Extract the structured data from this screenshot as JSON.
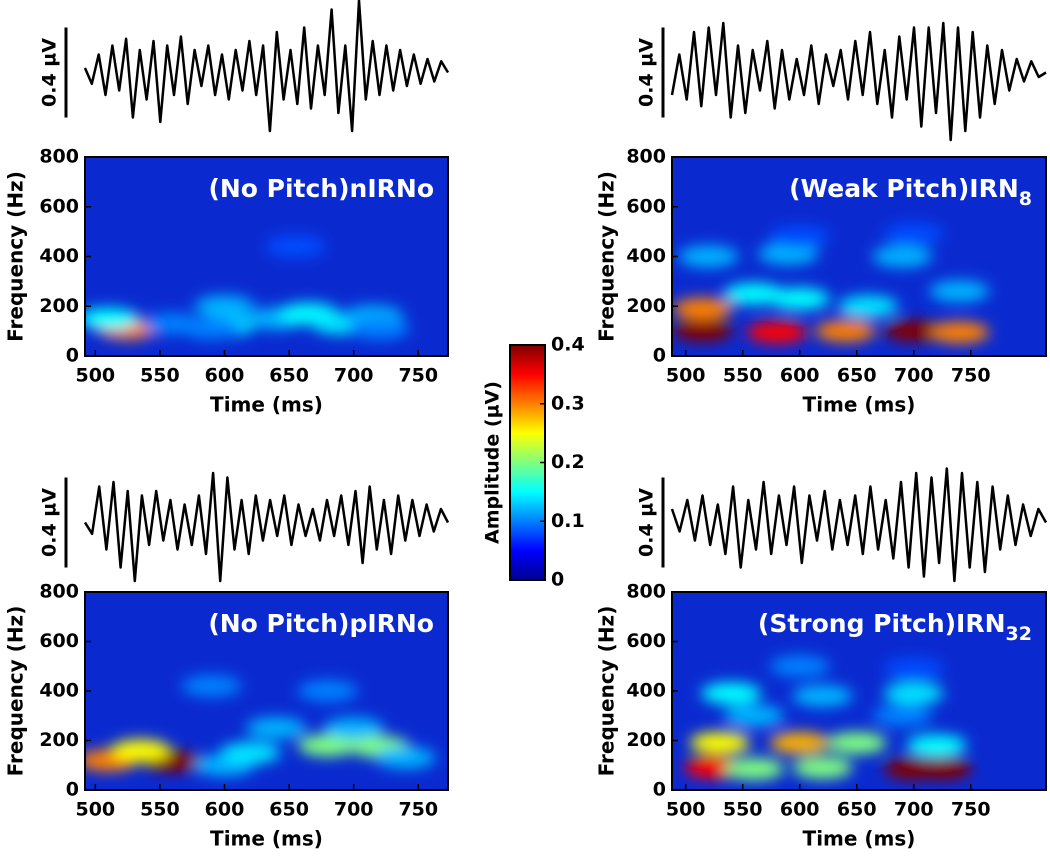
{
  "chart_data": [
    {
      "type": "spectrogram",
      "title": "(No Pitch)nIRNo",
      "xlabel": "Time (ms)",
      "ylabel": "Frequency (Hz)",
      "xlim": [
        492,
        773
      ],
      "xticks": [
        500,
        550,
        600,
        650,
        700,
        750
      ],
      "ylim": [
        0,
        800
      ],
      "yticks": [
        0,
        200,
        400,
        600,
        800
      ],
      "waveform": {
        "scale_label": "0.4 µV",
        "scale": 0.4,
        "values": [
          0.02,
          -0.05,
          0.08,
          -0.1,
          0.12,
          -0.08,
          0.15,
          -0.2,
          0.1,
          -0.12,
          0.14,
          -0.22,
          0.12,
          -0.1,
          0.16,
          -0.14,
          0.1,
          -0.06,
          0.12,
          -0.1,
          0.08,
          -0.12,
          0.1,
          -0.08,
          0.14,
          -0.1,
          0.12,
          -0.26,
          0.18,
          -0.12,
          0.1,
          -0.14,
          0.2,
          -0.16,
          0.12,
          -0.1,
          0.28,
          -0.18,
          0.12,
          -0.26,
          0.32,
          -0.12,
          0.14,
          -0.1,
          0.12,
          -0.08,
          0.1,
          -0.06,
          0.08,
          -0.05,
          0.06,
          -0.04,
          0.05,
          0.0
        ]
      },
      "blobs": {
        "x": [
          525,
          510,
          560,
          600,
          600,
          640,
          665,
          690,
          715,
          655,
          590,
          720
        ],
        "y": [
          110,
          150,
          130,
          120,
          200,
          150,
          170,
          130,
          160,
          440,
          110,
          110
        ],
        "values": [
          0.3,
          0.15,
          0.1,
          0.14,
          0.12,
          0.12,
          0.15,
          0.14,
          0.12,
          0.08,
          0.1,
          0.1
        ]
      }
    },
    {
      "type": "spectrogram",
      "title": "(Weak Pitch)IRN",
      "title_subscript": "8",
      "xlabel": "Time (ms)",
      "ylabel": "Frequency (Hz)",
      "xlim": [
        488,
        816
      ],
      "xticks": [
        500,
        550,
        600,
        650,
        700,
        750
      ],
      "ylim": [
        0,
        800
      ],
      "yticks": [
        0,
        200,
        400,
        600,
        800
      ],
      "waveform": {
        "scale_label": "0.4 µV",
        "scale": 0.4,
        "values": [
          -0.1,
          0.08,
          -0.12,
          0.18,
          -0.15,
          0.2,
          -0.1,
          0.22,
          -0.2,
          0.12,
          -0.18,
          0.1,
          -0.08,
          0.14,
          -0.16,
          0.1,
          -0.12,
          0.06,
          -0.1,
          0.12,
          -0.14,
          0.08,
          -0.06,
          0.1,
          -0.12,
          0.14,
          -0.1,
          0.18,
          -0.14,
          0.1,
          -0.2,
          0.16,
          -0.12,
          0.2,
          -0.24,
          0.2,
          -0.18,
          0.22,
          -0.3,
          0.2,
          -0.26,
          0.18,
          -0.2,
          0.12,
          -0.14,
          0.1,
          -0.08,
          0.06,
          -0.04,
          0.05,
          -0.02,
          0.0
        ]
      },
      "blobs": {
        "x": [
          515,
          580,
          640,
          700,
          740,
          515,
          560,
          600,
          660,
          520,
          590,
          690,
          740,
          600,
          700
        ],
        "y": [
          100,
          95,
          100,
          100,
          95,
          190,
          250,
          230,
          200,
          400,
          410,
          400,
          260,
          480,
          490
        ],
        "values": [
          0.4,
          0.35,
          0.3,
          0.4,
          0.3,
          0.3,
          0.15,
          0.15,
          0.14,
          0.12,
          0.12,
          0.12,
          0.12,
          0.08,
          0.08
        ]
      }
    },
    {
      "type": "spectrogram",
      "title": "(No Pitch)pIRNo",
      "xlabel": "Time (ms)",
      "ylabel": "Frequency (Hz)",
      "xlim": [
        492,
        773
      ],
      "xticks": [
        500,
        550,
        600,
        650,
        700,
        750
      ],
      "ylim": [
        0,
        800
      ],
      "yticks": [
        0,
        200,
        400,
        600,
        800
      ],
      "waveform": {
        "scale_label": "0.4 µV",
        "scale": 0.4,
        "values": [
          0.0,
          -0.05,
          0.16,
          -0.12,
          0.18,
          -0.2,
          0.14,
          -0.26,
          0.12,
          -0.1,
          0.14,
          -0.08,
          0.1,
          -0.12,
          0.08,
          -0.1,
          0.12,
          -0.14,
          0.22,
          -0.26,
          0.2,
          -0.12,
          0.1,
          -0.14,
          0.12,
          -0.08,
          0.1,
          -0.06,
          0.12,
          -0.1,
          0.08,
          -0.06,
          0.06,
          -0.08,
          0.1,
          -0.06,
          0.12,
          -0.1,
          0.14,
          -0.18,
          0.16,
          -0.12,
          0.1,
          -0.14,
          0.12,
          -0.08,
          0.1,
          -0.06,
          0.08,
          -0.04,
          0.06,
          0.0
        ]
      },
      "blobs": {
        "x": [
          510,
          560,
          535,
          600,
          620,
          680,
          720,
          640,
          700,
          590,
          680,
          740
        ],
        "y": [
          120,
          115,
          160,
          100,
          150,
          180,
          175,
          250,
          250,
          420,
          400,
          130
        ],
        "values": [
          0.3,
          0.4,
          0.25,
          0.12,
          0.14,
          0.2,
          0.2,
          0.12,
          0.12,
          0.1,
          0.1,
          0.12
        ]
      }
    },
    {
      "type": "spectrogram",
      "title": "(Strong Pitch)IRN",
      "title_subscript": "32",
      "xlabel": "Time (ms)",
      "ylabel": "Frequency (Hz)",
      "xlim": [
        488,
        816
      ],
      "xticks": [
        500,
        550,
        600,
        650,
        700,
        750
      ],
      "ylim": [
        0,
        800
      ],
      "yticks": [
        0,
        200,
        400,
        600,
        800
      ],
      "waveform": {
        "scale_label": "0.4 µV",
        "scale": 0.4,
        "values": [
          0.06,
          -0.04,
          0.1,
          -0.08,
          0.12,
          -0.1,
          0.08,
          -0.14,
          0.16,
          -0.2,
          0.1,
          -0.12,
          0.18,
          -0.14,
          0.12,
          -0.1,
          0.16,
          -0.18,
          0.12,
          -0.08,
          0.14,
          -0.12,
          0.1,
          -0.1,
          0.12,
          -0.14,
          0.16,
          -0.12,
          0.1,
          -0.16,
          0.18,
          -0.2,
          0.22,
          -0.24,
          0.2,
          -0.18,
          0.24,
          -0.26,
          0.22,
          -0.2,
          0.18,
          -0.22,
          0.16,
          -0.12,
          0.12,
          -0.1,
          0.08,
          -0.06,
          0.06,
          0.0
        ]
      },
      "blobs": {
        "x": [
          525,
          560,
          620,
          700,
          725,
          530,
          600,
          650,
          720,
          540,
          620,
          700,
          560,
          690,
          600,
          700
        ],
        "y": [
          90,
          85,
          90,
          85,
          85,
          190,
          190,
          190,
          180,
          390,
          380,
          390,
          300,
          300,
          500,
          490
        ],
        "values": [
          0.35,
          0.2,
          0.2,
          0.4,
          0.4,
          0.25,
          0.28,
          0.2,
          0.15,
          0.15,
          0.12,
          0.14,
          0.12,
          0.1,
          0.1,
          0.08
        ]
      }
    },
    {
      "type": "colorbar",
      "label": "Amplitude (µV)",
      "clim": [
        0,
        0.4
      ],
      "ticks": [
        0,
        0.1,
        0.2,
        0.3,
        0.4
      ]
    }
  ]
}
